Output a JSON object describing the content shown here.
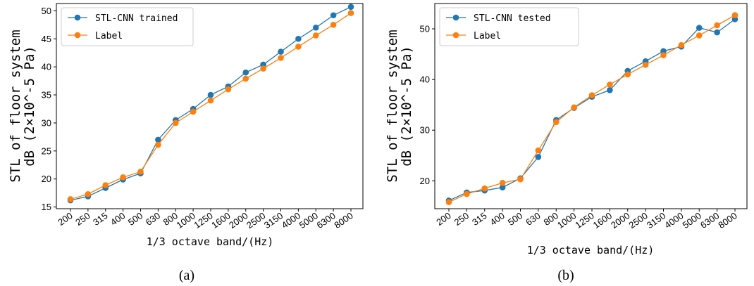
{
  "chart_data": [
    {
      "type": "line",
      "caption": "(a)",
      "xlabel": "1/3 octave band/(Hz)",
      "ylabel_line1": "STL of floor system",
      "ylabel_line2": "dB (2×10^-5 Pa)",
      "categories": [
        "200",
        "250",
        "315",
        "400",
        "500",
        "630",
        "800",
        "1000",
        "1250",
        "1600",
        "2000",
        "2500",
        "3150",
        "4000",
        "5000",
        "6300",
        "8000"
      ],
      "yticks": [
        15,
        20,
        25,
        30,
        35,
        40,
        45,
        50
      ],
      "ylim": [
        14.7,
        51.3
      ],
      "legend_position": "top-left",
      "series": [
        {
          "name": "STL-CNN trained",
          "color": "#1f77b4",
          "values": [
            16.2,
            16.9,
            18.4,
            19.9,
            21.0,
            27.0,
            30.5,
            32.5,
            35.0,
            36.5,
            39.0,
            40.4,
            42.7,
            45.0,
            47.0,
            49.2,
            50.7
          ]
        },
        {
          "name": "Label",
          "color": "#ff7f0e",
          "values": [
            16.4,
            17.3,
            18.9,
            20.3,
            21.3,
            26.1,
            30.0,
            32.0,
            34.0,
            36.0,
            37.9,
            39.7,
            41.6,
            43.6,
            45.6,
            47.5,
            49.6
          ]
        }
      ]
    },
    {
      "type": "line",
      "caption": "(b)",
      "xlabel": "1/3 octave band/(Hz)",
      "ylabel_line1": "STL of floor system",
      "ylabel_line2": "dB (2×10^-5 Pa)",
      "categories": [
        "200",
        "250",
        "315",
        "400",
        "500",
        "630",
        "800",
        "1000",
        "1250",
        "1600",
        "2000",
        "2500",
        "3150",
        "4000",
        "5000",
        "6300",
        "8000"
      ],
      "yticks": [
        20,
        30,
        40,
        50
      ],
      "ylim": [
        14.5,
        55.0
      ],
      "legend_position": "top-left",
      "series": [
        {
          "name": "STL-CNN tested",
          "color": "#1f77b4",
          "values": [
            16.1,
            17.7,
            18.1,
            18.7,
            20.5,
            24.7,
            32.0,
            34.4,
            36.6,
            37.9,
            41.7,
            43.6,
            45.6,
            46.5,
            50.2,
            49.3,
            51.9
          ]
        },
        {
          "name": "Label",
          "color": "#ff7f0e",
          "values": [
            15.8,
            17.4,
            18.5,
            19.6,
            20.3,
            26.0,
            31.6,
            34.5,
            36.9,
            39.0,
            41.0,
            42.9,
            44.8,
            46.8,
            48.7,
            50.7,
            52.7
          ]
        }
      ]
    }
  ]
}
